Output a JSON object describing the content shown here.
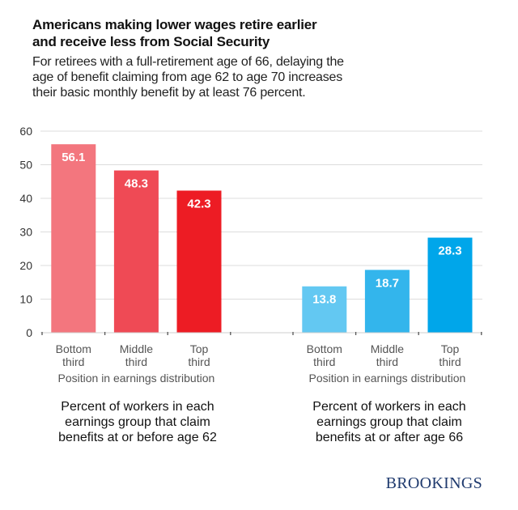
{
  "header": {
    "title_line1": "Americans making lower wages retire earlier",
    "title_line2": "and receive less from Social Security",
    "subtitle_line1": "For retirees with a full-retirement age of 66, delaying the",
    "subtitle_line2": "age of benefit claiming from age 62 to age 70 increases",
    "subtitle_line3": "their basic monthly benefit by at least 76 percent."
  },
  "captions": {
    "left": [
      "Percent of workers in each",
      "earnings group that claim",
      "benefits at or before age 62"
    ],
    "right": [
      "Percent of workers in each",
      "earnings group that claim",
      "benefits at or after age 66"
    ]
  },
  "brand": {
    "logo_text": "BROOKINGS",
    "color": "#1F3A6E"
  },
  "chart_data": {
    "type": "bar",
    "title": "Americans making lower wages retire earlier and receive less from Social Security",
    "ylim": [
      0,
      60
    ],
    "yticks": [
      0,
      10,
      20,
      30,
      40,
      50,
      60
    ],
    "grid": true,
    "xlabel": "Position in earnings distribution",
    "ylabel": "",
    "groups": [
      {
        "name": "Percent of workers in each earnings group that claim benefits at or before age 62",
        "xlabel": "Position in earnings distribution",
        "categories": [
          [
            "Bottom",
            "third"
          ],
          [
            "Middle",
            "third"
          ],
          [
            "Top",
            "third"
          ]
        ],
        "values": [
          56.1,
          48.3,
          42.3
        ],
        "colors": [
          "#F3767E",
          "#EF4A55",
          "#ED1C24"
        ]
      },
      {
        "name": "Percent of workers in each earnings group that claim benefits at or after age 66",
        "xlabel": "Position in earnings distribution",
        "categories": [
          [
            "Bottom",
            "third"
          ],
          [
            "Middle",
            "third"
          ],
          [
            "Top",
            "third"
          ]
        ],
        "values": [
          13.8,
          18.7,
          28.3
        ],
        "colors": [
          "#63C8F2",
          "#33B5EC",
          "#00A6EA"
        ]
      }
    ]
  }
}
